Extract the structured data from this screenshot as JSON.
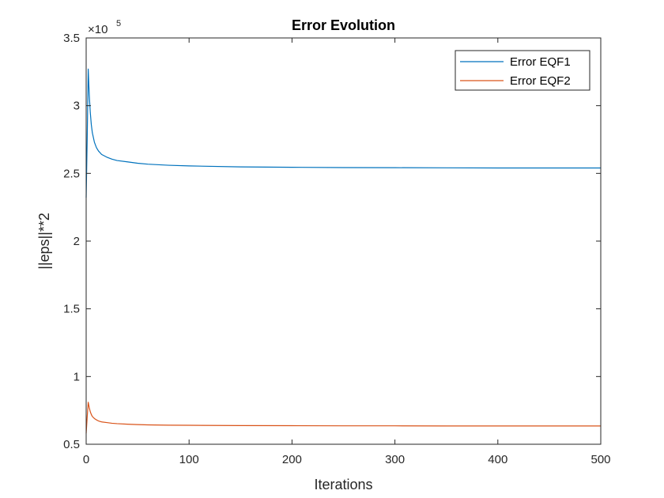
{
  "chart_data": {
    "type": "line",
    "title": "Error Evolution",
    "xlabel": "Iterations",
    "ylabel": "||eps||**2",
    "y_exponent": {
      "base": "×10",
      "power": "5"
    },
    "xlim": [
      0,
      500
    ],
    "ylim": [
      0.5,
      3.5
    ],
    "x_ticks": [
      0,
      100,
      200,
      300,
      400,
      500
    ],
    "x_tick_labels": [
      "0",
      "100",
      "200",
      "300",
      "400",
      "500"
    ],
    "y_ticks": [
      0.5,
      1,
      1.5,
      2,
      2.5,
      3,
      3.5
    ],
    "y_tick_labels": [
      "0.5",
      "1",
      "1.5",
      "2",
      "2.5",
      "3",
      "3.5"
    ],
    "grid": false,
    "legend_position": "top-right",
    "series": [
      {
        "name": "Error EQF1",
        "color": "#0072BD",
        "x": [
          0,
          1,
          2,
          3,
          4,
          5,
          6,
          8,
          10,
          12,
          15,
          20,
          25,
          30,
          40,
          50,
          60,
          80,
          100,
          150,
          200,
          250,
          300,
          350,
          400,
          450,
          500
        ],
        "y": [
          2.32,
          2.75,
          3.27,
          3.08,
          2.95,
          2.86,
          2.8,
          2.73,
          2.69,
          2.665,
          2.64,
          2.62,
          2.605,
          2.595,
          2.585,
          2.575,
          2.568,
          2.56,
          2.555,
          2.548,
          2.545,
          2.543,
          2.542,
          2.541,
          2.54,
          2.54,
          2.54
        ]
      },
      {
        "name": "Error EQF2",
        "color": "#D95319",
        "x": [
          0,
          1,
          2,
          3,
          4,
          5,
          6,
          8,
          10,
          12,
          15,
          20,
          25,
          30,
          40,
          50,
          60,
          80,
          100,
          150,
          200,
          250,
          300,
          350,
          400,
          450,
          500
        ],
        "y": [
          0.58,
          0.7,
          0.81,
          0.77,
          0.74,
          0.72,
          0.705,
          0.69,
          0.68,
          0.672,
          0.665,
          0.66,
          0.655,
          0.652,
          0.648,
          0.645,
          0.643,
          0.641,
          0.64,
          0.638,
          0.637,
          0.636,
          0.636,
          0.635,
          0.635,
          0.635,
          0.635
        ]
      }
    ]
  }
}
